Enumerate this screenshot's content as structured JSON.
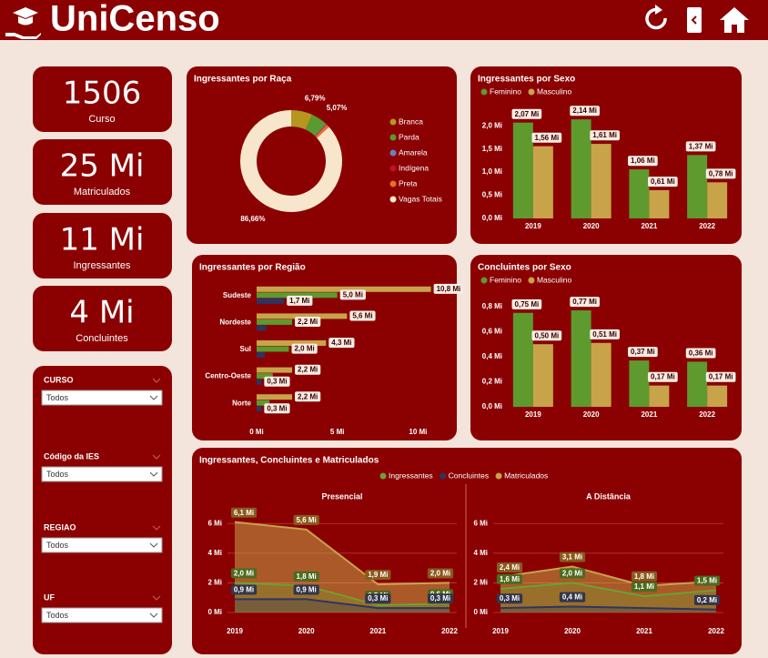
{
  "header": {
    "title": "UniCenso"
  },
  "kpis": [
    {
      "value": "1506",
      "label": "Curso"
    },
    {
      "value": "25 Mi",
      "label": "Matriculados"
    },
    {
      "value": "11 Mi",
      "label": "Ingressantes"
    },
    {
      "value": "4 Mi",
      "label": "Concluintes"
    }
  ],
  "filters": [
    {
      "label": "CURSO",
      "value": "Todos"
    },
    {
      "label": "Código da IES",
      "value": "Todos"
    },
    {
      "label": "REGIAO",
      "value": "Todos"
    },
    {
      "label": "UF",
      "value": "Todos"
    }
  ],
  "chart_data": [
    {
      "type": "pie",
      "title": "Ingressantes por Raça",
      "donut": true,
      "categories": [
        "Branca",
        "Parda",
        "Amarela",
        "Indígena",
        "Preta",
        "Vagas Totais"
      ],
      "values": [
        6.79,
        5.07,
        0.35,
        0.13,
        1.0,
        86.66
      ],
      "value_labels": [
        "6,79%",
        "5,07%",
        null,
        null,
        null,
        "86,66%"
      ],
      "colors": [
        "#b5961e",
        "#5a9a2e",
        "#6b7fc0",
        "#c0102a",
        "#e87020",
        "#f7e6cc"
      ]
    },
    {
      "type": "bar",
      "title": "Ingressantes por Sexo",
      "categories": [
        "2019",
        "2020",
        "2021",
        "2022"
      ],
      "series": [
        {
          "name": "Feminino",
          "color": "#5e9a2e",
          "values": [
            2.07,
            2.14,
            1.06,
            1.37
          ],
          "value_labels": [
            "2,07 Mi",
            "2,14 Mi",
            "1,06 Mi",
            "1,37 Mi"
          ]
        },
        {
          "name": "Masculino",
          "color": "#c9a34a",
          "values": [
            1.56,
            1.61,
            0.61,
            0.78
          ],
          "value_labels": [
            "1,56 Mi",
            "1,61 Mi",
            "0,61 Mi",
            "0,78 Mi"
          ]
        }
      ],
      "ylim": [
        0,
        2.3
      ],
      "yticks": [
        {
          "value": 0,
          "label": "0,0 Mi"
        },
        {
          "value": 0.5,
          "label": "0,5 Mi"
        },
        {
          "value": 1,
          "label": "1,0 Mi"
        },
        {
          "value": 1.5,
          "label": "1,5 Mi"
        },
        {
          "value": 2,
          "label": "2,0 Mi"
        }
      ]
    },
    {
      "type": "bar",
      "title": "Concluintes por Sexo",
      "categories": [
        "2019",
        "2020",
        "2021",
        "2022"
      ],
      "series": [
        {
          "name": "Feminino",
          "color": "#5e9a2e",
          "values": [
            0.75,
            0.77,
            0.37,
            0.36
          ],
          "value_labels": [
            "0,75 Mi",
            "0,77 Mi",
            "0,37 Mi",
            "0,36 Mi"
          ]
        },
        {
          "name": "Masculino",
          "color": "#c9a34a",
          "values": [
            0.5,
            0.51,
            0.17,
            0.17
          ],
          "value_labels": [
            "0,50 Mi",
            "0,51 Mi",
            "0,17 Mi",
            "0,17 Mi"
          ]
        }
      ],
      "ylim": [
        0,
        0.85
      ],
      "yticks": [
        {
          "value": 0,
          "label": "0,0 Mi"
        },
        {
          "value": 0.2,
          "label": "0,2 Mi"
        },
        {
          "value": 0.4,
          "label": "0,4 Mi"
        },
        {
          "value": 0.6,
          "label": "0,6 Mi"
        },
        {
          "value": 0.8,
          "label": "0,8 Mi"
        }
      ]
    },
    {
      "type": "hbar",
      "title": "Ingressantes por Região",
      "categories": [
        "Sudeste",
        "Nordeste",
        "Sul",
        "Centro-Oeste",
        "Norte"
      ],
      "series": [
        {
          "color": "#c9a34a",
          "values": [
            10.8,
            5.6,
            4.3,
            2.2,
            2.2
          ],
          "value_labels": [
            "10,8 Mi",
            "5,6 Mi",
            "4,3 Mi",
            "2,2 Mi",
            "2,2 Mi"
          ]
        },
        {
          "color": "#5e9a2e",
          "values": [
            5.0,
            2.2,
            2.0,
            1.0,
            0.8
          ],
          "value_labels": [
            "5,0 Mi",
            "2,2 Mi",
            "2,0 Mi",
            null,
            null
          ]
        },
        {
          "color": "#2e3560",
          "values": [
            1.7,
            0.6,
            0.5,
            0.3,
            0.3
          ],
          "value_labels": [
            "1,7 Mi",
            null,
            null,
            "0,3 Mi",
            "0,3 Mi"
          ]
        }
      ],
      "xlim": [
        0,
        11.5
      ],
      "xticks": [
        {
          "value": 0,
          "label": "0 Mi"
        },
        {
          "value": 5,
          "label": "5 Mi"
        },
        {
          "value": 10,
          "label": "10 Mi"
        }
      ]
    },
    {
      "type": "line",
      "title": "Ingressantes, Concluintes e Matriculados",
      "categories": [
        "2019",
        "2020",
        "2021",
        "2022"
      ],
      "ylim": [
        0,
        7
      ],
      "yticks": [
        {
          "value": 0,
          "label": "0 Mi"
        },
        {
          "value": 2,
          "label": "2 Mi"
        },
        {
          "value": 4,
          "label": "4 Mi"
        },
        {
          "value": 6,
          "label": "6 Mi"
        }
      ],
      "panels": [
        {
          "subtitle": "Presencial",
          "series": [
            {
              "name": "Ingressantes",
              "color": "#6aa232",
              "values": [
                2.0,
                1.8,
                0.5,
                0.6
              ],
              "value_labels": [
                "2,0 Mi",
                "1,8 Mi",
                "0,5 Mi",
                "0,6 Mi"
              ]
            },
            {
              "name": "Concluintes",
              "color": "#2e3560",
              "values": [
                0.9,
                0.9,
                0.3,
                0.3
              ],
              "value_labels": [
                "0,9 Mi",
                "0,9 Mi",
                "0,3 Mi",
                "0,3 Mi"
              ]
            },
            {
              "name": "Matriculados",
              "color": "#c9a34a",
              "values": [
                6.1,
                5.6,
                1.9,
                2.0
              ],
              "value_labels": [
                "6,1 Mi",
                "5,6 Mi",
                "1,9 Mi",
                "2,0 Mi"
              ]
            }
          ]
        },
        {
          "subtitle": "A Distância",
          "series": [
            {
              "color": "#6aa232",
              "values": [
                1.6,
                2.0,
                1.1,
                1.5
              ],
              "value_labels": [
                "1,6 Mi",
                "2,0 Mi",
                "1,1 Mi",
                "1,5 Mi"
              ]
            },
            {
              "color": "#2e3560",
              "values": [
                0.3,
                0.4,
                0.3,
                0.2
              ],
              "value_labels": [
                "0,3 Mi",
                "0,4 Mi",
                null,
                "0,2 Mi"
              ]
            },
            {
              "color": "#c9a34a",
              "values": [
                2.4,
                3.1,
                1.8,
                2.1
              ],
              "value_labels": [
                "2,4 Mi",
                "3,1 Mi",
                "1,8 Mi",
                null
              ]
            }
          ]
        }
      ]
    }
  ]
}
